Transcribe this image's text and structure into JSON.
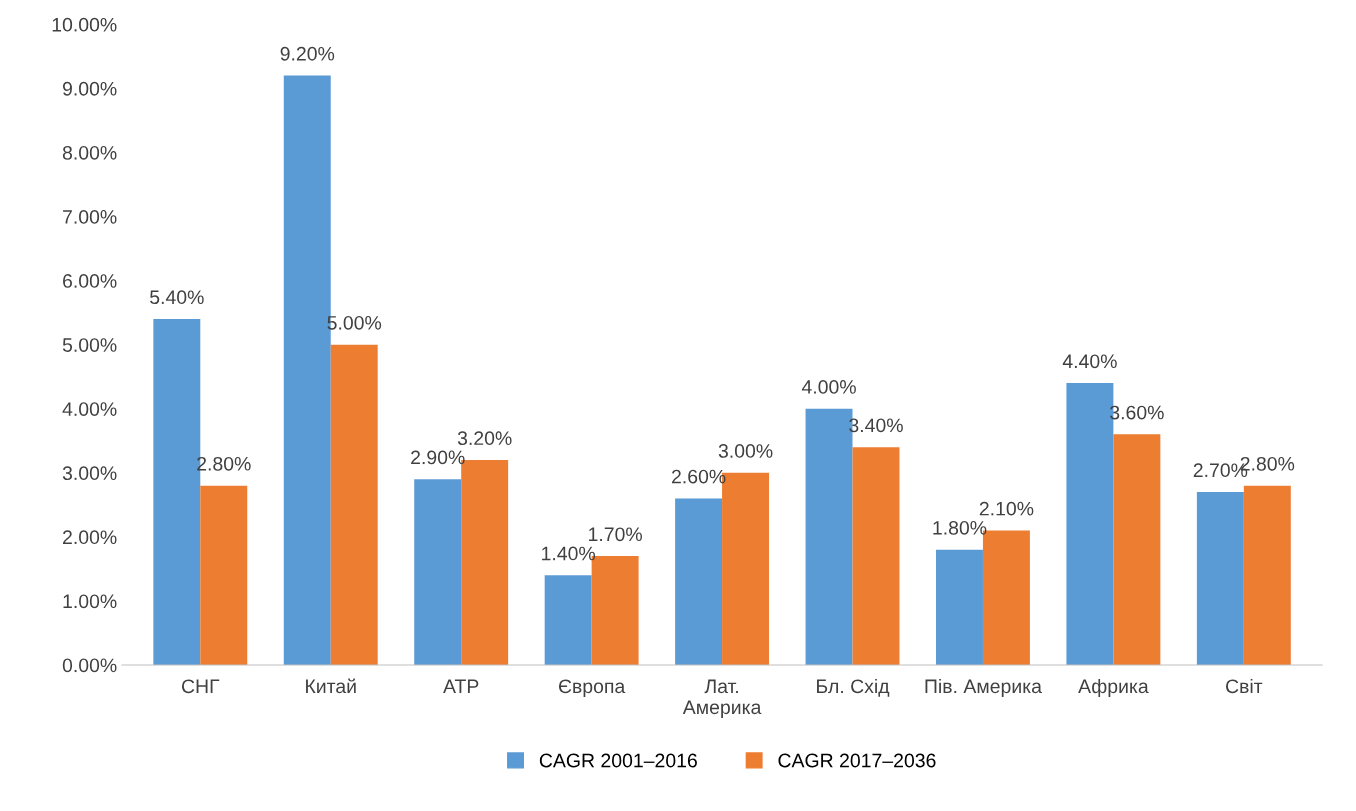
{
  "chart_data": {
    "type": "bar",
    "categories": [
      "СНГ",
      "Китай",
      "АТР",
      "Європа",
      "Лат.\nАмерика",
      "Бл. Схід",
      "Пів. Америка",
      "Африка",
      "Світ"
    ],
    "series": [
      {
        "name": "CAGR 2001–2016",
        "color": "#5b9bd5",
        "values": [
          5.4,
          9.2,
          2.9,
          1.4,
          2.6,
          4.0,
          1.8,
          4.4,
          2.7
        ],
        "value_labels": [
          "5.40%",
          "9.20%",
          "2.90%",
          "1.40%",
          "2.60%",
          "4.00%",
          "1.80%",
          "4.40%",
          "2.70%"
        ]
      },
      {
        "name": "CAGR 2017–2036",
        "color": "#ed7d31",
        "values": [
          2.8,
          5.0,
          3.2,
          1.7,
          3.0,
          3.4,
          2.1,
          3.6,
          2.8
        ],
        "value_labels": [
          "2.80%",
          "5.00%",
          "3.20%",
          "1.70%",
          "3.00%",
          "3.40%",
          "2.10%",
          "3.60%",
          "2.80%"
        ]
      }
    ],
    "ylim": [
      0,
      10
    ],
    "yticks": [
      {
        "value": 0,
        "label": "0.00%"
      },
      {
        "value": 1,
        "label": "1.00%"
      },
      {
        "value": 2,
        "label": "2.00%"
      },
      {
        "value": 3,
        "label": "3.00%"
      },
      {
        "value": 4,
        "label": "4.00%"
      },
      {
        "value": 5,
        "label": "5.00%"
      },
      {
        "value": 6,
        "label": "6.00%"
      },
      {
        "value": 7,
        "label": "7.00%"
      },
      {
        "value": 8,
        "label": "8.00%"
      },
      {
        "value": 9,
        "label": "9.00%"
      },
      {
        "value": 10,
        "label": "10.00%"
      }
    ],
    "grid": false,
    "legend": "bottom"
  }
}
